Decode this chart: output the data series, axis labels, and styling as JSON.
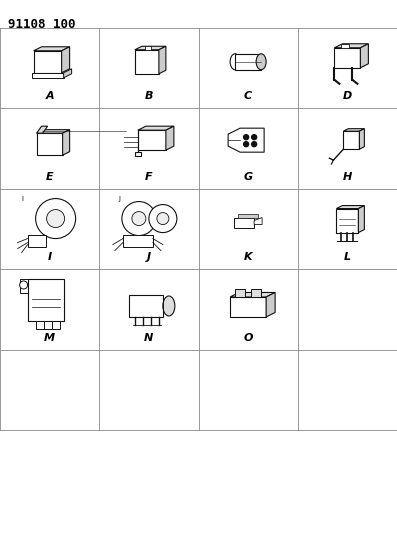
{
  "title": "91108 100",
  "background_color": "#ffffff",
  "grid_color": "#888888",
  "text_color": "#000000",
  "title_fontsize": 9,
  "label_fontsize": 8,
  "figsize": [
    3.97,
    5.33
  ],
  "dpi": 100,
  "cells": [
    {
      "id": "A",
      "row": 0,
      "col": 0,
      "label": "A"
    },
    {
      "id": "B",
      "row": 0,
      "col": 1,
      "label": "B"
    },
    {
      "id": "C",
      "row": 0,
      "col": 2,
      "label": "C"
    },
    {
      "id": "D",
      "row": 0,
      "col": 3,
      "label": "D"
    },
    {
      "id": "E",
      "row": 1,
      "col": 0,
      "label": "E"
    },
    {
      "id": "F",
      "row": 1,
      "col": 1,
      "label": "F"
    },
    {
      "id": "G",
      "row": 1,
      "col": 2,
      "label": "G"
    },
    {
      "id": "H",
      "row": 1,
      "col": 3,
      "label": "H"
    },
    {
      "id": "I",
      "row": 2,
      "col": 0,
      "label": "I"
    },
    {
      "id": "J",
      "row": 2,
      "col": 1,
      "label": "J"
    },
    {
      "id": "K",
      "row": 2,
      "col": 2,
      "label": "K"
    },
    {
      "id": "L",
      "row": 2,
      "col": 3,
      "label": "L"
    },
    {
      "id": "M",
      "row": 3,
      "col": 0,
      "label": "M"
    },
    {
      "id": "N",
      "row": 3,
      "col": 1,
      "label": "N"
    },
    {
      "id": "O",
      "row": 3,
      "col": 2,
      "label": "O"
    }
  ]
}
